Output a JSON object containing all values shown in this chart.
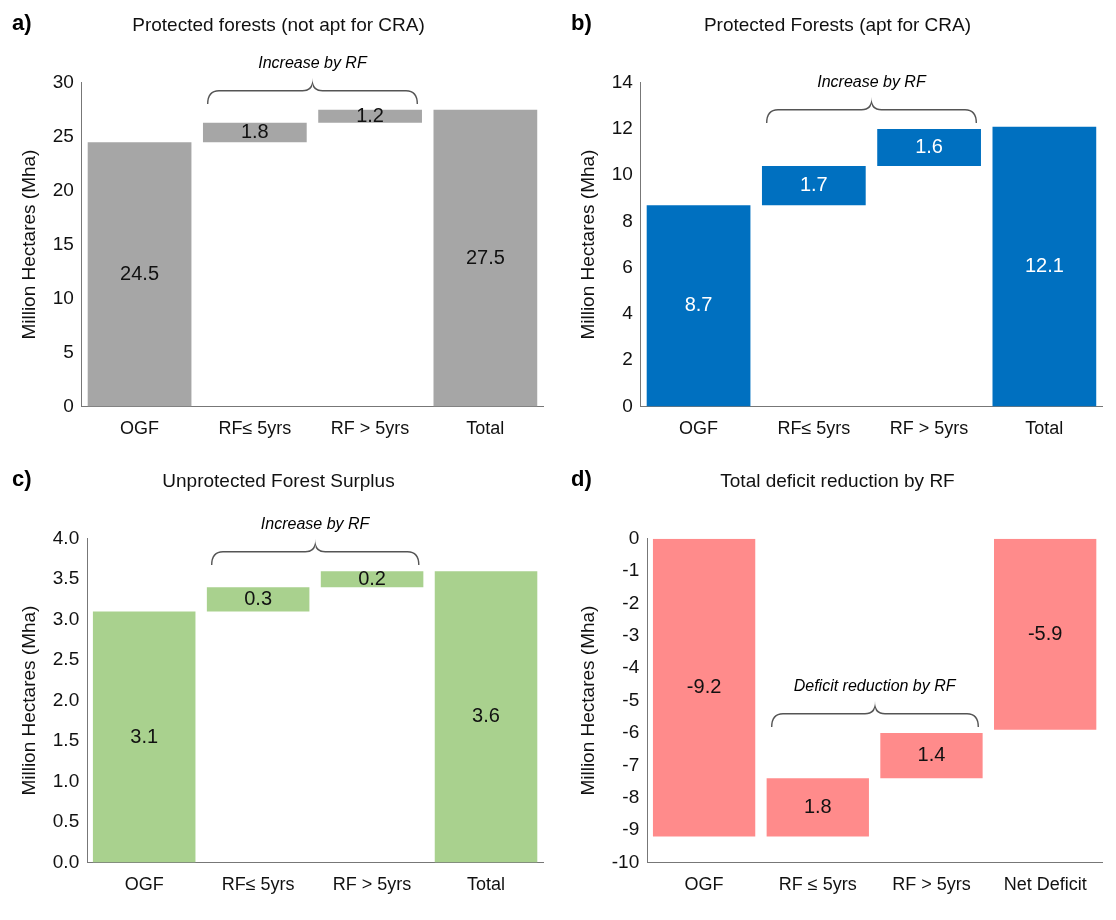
{
  "chart_data": [
    {
      "type": "bar",
      "title": "Protected forests (not apt for CRA)",
      "ylabel": "Million Hectares (Mha)",
      "categories": [
        "OGF",
        "RF≤ 5yrs",
        "RF > 5yrs",
        "Total"
      ],
      "values": [
        24.5,
        1.8,
        1.2,
        27.5
      ],
      "base": [
        0,
        24.5,
        26.3,
        0
      ],
      "color": "#a6a6a6",
      "data_labels": true,
      "ylim": [
        0,
        30
      ],
      "yticks": [
        0,
        5,
        10,
        15,
        20,
        25,
        30
      ],
      "annotations": [
        "a)",
        "Increase by RF"
      ]
    },
    {
      "type": "bar",
      "title": "Protected Forests (apt for CRA)",
      "ylabel": "Million Hectares (Mha)",
      "categories": [
        "OGF",
        "RF≤ 5yrs",
        "RF > 5yrs",
        "Total"
      ],
      "values": [
        8.7,
        1.7,
        1.6,
        12.1
      ],
      "base": [
        0,
        8.7,
        10.4,
        0
      ],
      "color": "#0070c0",
      "data_labels": true,
      "ylim": [
        0,
        14
      ],
      "yticks": [
        0,
        2,
        4,
        6,
        8,
        10,
        12,
        14
      ],
      "annotations": [
        "b)",
        "Increase by RF"
      ]
    },
    {
      "type": "bar",
      "title": "Unprotected Forest Surplus",
      "ylabel": "Million Hectares (Mha)",
      "categories": [
        "OGF",
        "RF≤ 5yrs",
        "RF > 5yrs",
        "Total"
      ],
      "values": [
        3.1,
        0.3,
        0.2,
        3.6
      ],
      "base": [
        0,
        3.1,
        3.4,
        0
      ],
      "color": "#a9d18e",
      "data_labels": true,
      "ylim": [
        0,
        4
      ],
      "yticks": [
        {
          "value": 0,
          "label": "0.0"
        },
        0.5,
        {
          "value": 1,
          "label": "1.0"
        },
        1.5,
        {
          "value": 2,
          "label": "2.0"
        },
        2.5,
        {
          "value": 3,
          "label": "3.0"
        },
        3.5,
        {
          "value": 4,
          "label": "4.0"
        }
      ],
      "annotations": [
        "c)",
        "Increase by RF"
      ]
    },
    {
      "type": "bar",
      "title": "Total deficit reduction by RF",
      "ylabel": "Million Hectares (Mha)",
      "categories": [
        "OGF",
        "RF ≤ 5yrs",
        "RF > 5yrs",
        "Net Deficit"
      ],
      "values": [
        -9.2,
        1.8,
        1.4,
        -5.9
      ],
      "base": [
        0,
        -9.2,
        -7.4,
        0
      ],
      "color": "#ff8b8b",
      "data_labels": true,
      "ylim": [
        -10,
        0
      ],
      "yticks": [
        -10,
        -9,
        -8,
        -7,
        -6,
        -5,
        -4,
        -3,
        -2,
        -1,
        0
      ],
      "annotations": [
        "d)",
        "Deficit reduction by RF"
      ]
    }
  ]
}
